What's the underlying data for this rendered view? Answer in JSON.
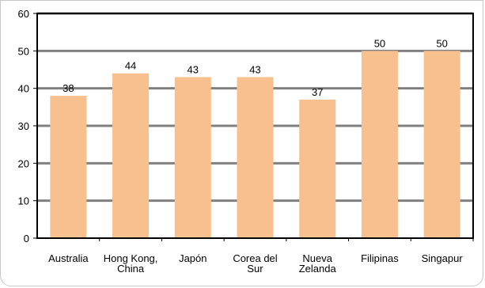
{
  "chart_data": {
    "type": "bar",
    "categories": [
      [
        "Australia"
      ],
      [
        "Hong Kong,",
        "China"
      ],
      [
        "Japón"
      ],
      [
        "Corea del",
        "Sur"
      ],
      [
        "Nueva",
        "Zelanda"
      ],
      [
        "Filipinas"
      ],
      [
        "Singapur"
      ]
    ],
    "values": [
      38,
      44,
      43,
      43,
      37,
      50,
      50
    ],
    "data_labels": [
      "38",
      "44",
      "43",
      "43",
      "37",
      "50",
      "50"
    ],
    "ylim": [
      0,
      60
    ],
    "yticks": [
      "0",
      "10",
      "20",
      "30",
      "40",
      "50",
      "60"
    ],
    "title": "",
    "xlabel": "",
    "ylabel": "",
    "grid": true,
    "legend": "none",
    "colors": {
      "bar": "#f8c08e",
      "grid": "#808080",
      "axis": "#000000",
      "background": "#ffffff"
    }
  }
}
